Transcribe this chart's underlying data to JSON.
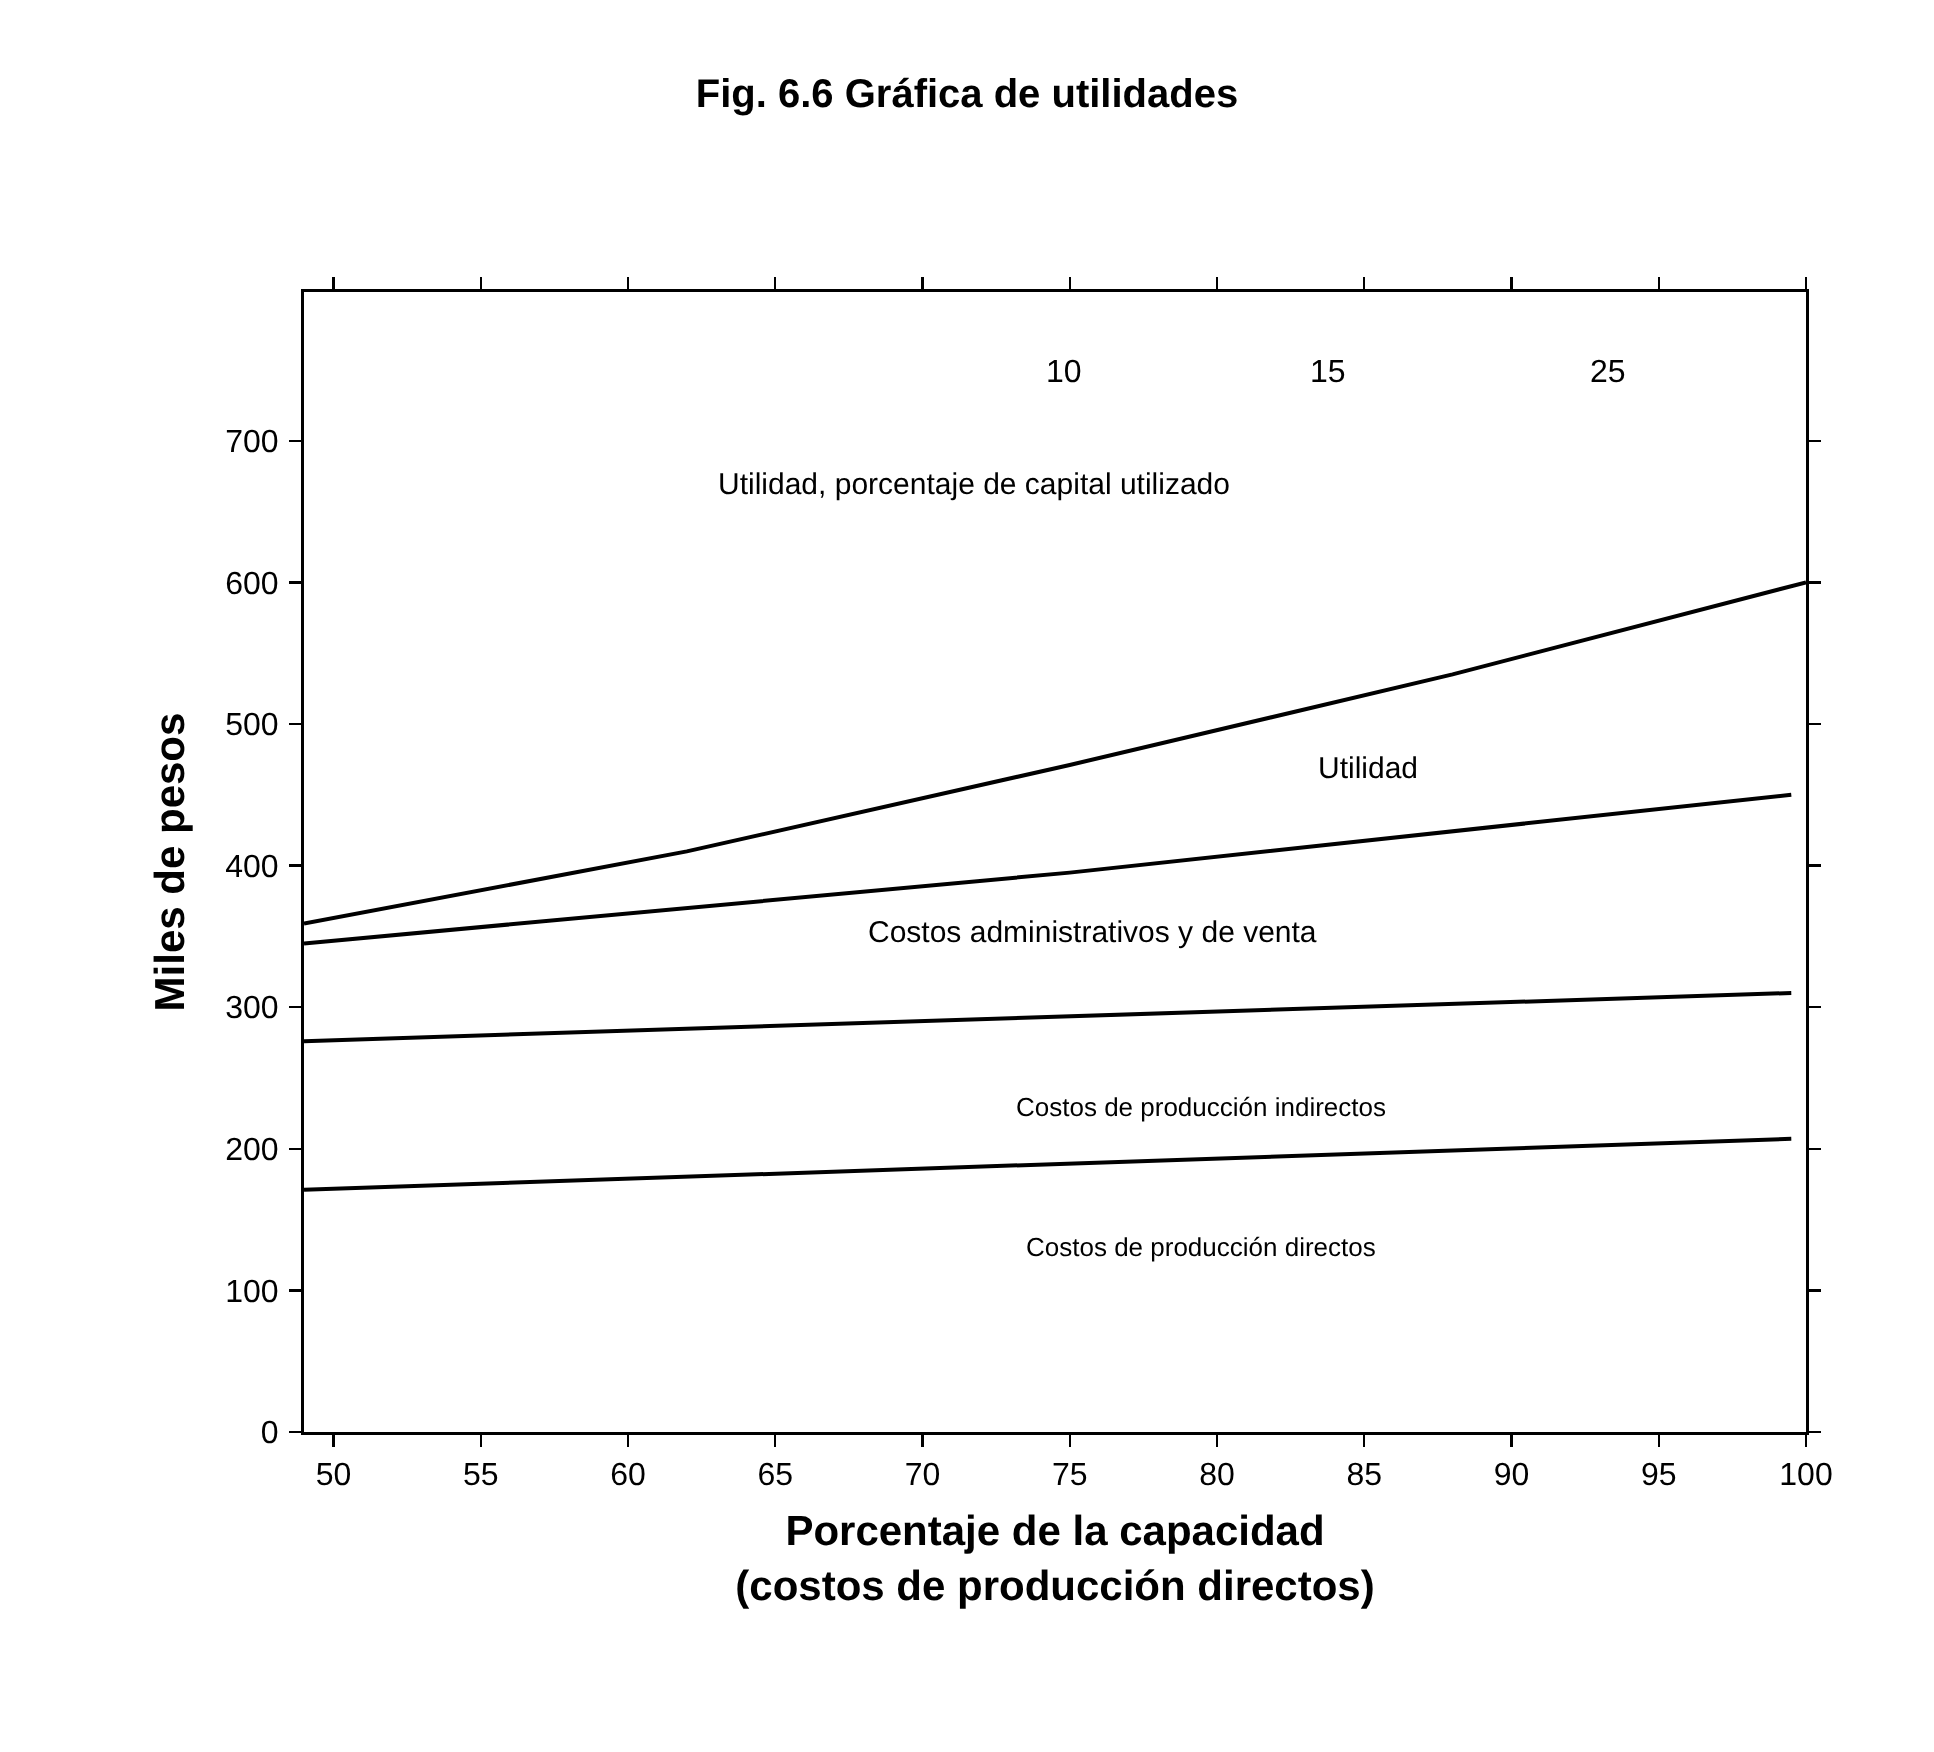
{
  "chart_data": {
    "type": "line",
    "title": "Fig. 6.6 Gráfica de utilidades",
    "xlabel": "Porcentaje de la capacidad\n(costos de producción directos)",
    "ylabel": "Miles de pesos",
    "xlim": [
      49,
      100
    ],
    "xticks": [
      50,
      55,
      60,
      65,
      70,
      75,
      80,
      85,
      90,
      95,
      100
    ],
    "ylim": [
      0,
      805
    ],
    "yticks": [
      0,
      100,
      200,
      300,
      400,
      500,
      600,
      700
    ],
    "series": [
      {
        "color": "#000000",
        "x": [
          49,
          62,
          75,
          88,
          100
        ],
        "values": [
          359,
          410,
          471,
          535,
          600
        ]
      },
      {
        "color": "#000000",
        "x": [
          49,
          75,
          99.5
        ],
        "values": [
          345,
          395,
          450
        ]
      },
      {
        "color": "#000000",
        "x": [
          49,
          99.5
        ],
        "values": [
          276,
          310
        ]
      },
      {
        "color": "#000000",
        "x": [
          49,
          99.5
        ],
        "values": [
          171,
          207
        ]
      }
    ],
    "annotations": [
      "Utilidad, porcentaje de capital utilizado",
      "Utilidad",
      "Costos administrativos y de venta",
      "Costos de producción indirectos",
      "Costos de producción directos",
      "10",
      "15",
      "25"
    ],
    "grid": false,
    "marker": "none",
    "line_style": "solid"
  }
}
